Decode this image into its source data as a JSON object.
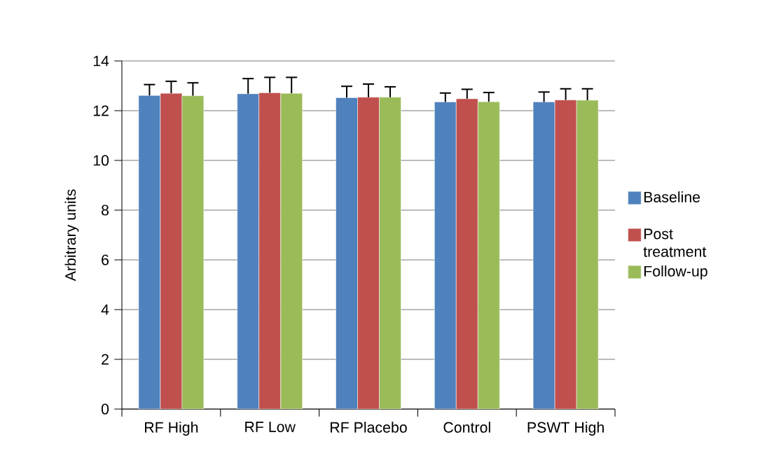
{
  "chart_data": {
    "type": "bar",
    "ylabel": "Arbitrary units",
    "categories": [
      "RF High",
      "RF Low",
      "RF Placebo",
      "Control",
      "PSWT High"
    ],
    "series": [
      {
        "name": "Baseline",
        "color": "#4f81bd",
        "values": [
          12.61,
          12.68,
          12.52,
          12.35,
          12.35
        ],
        "errors": [
          [
            12.61,
            13.05
          ],
          [
            12.68,
            13.29
          ],
          [
            12.52,
            12.98
          ],
          [
            12.35,
            12.71
          ],
          [
            12.35,
            12.75
          ]
        ]
      },
      {
        "name": "Post treatment",
        "color": "#c0504d",
        "values": [
          12.7,
          12.72,
          12.54,
          12.48,
          12.43
        ],
        "errors": [
          [
            12.7,
            13.18
          ],
          [
            12.72,
            13.34
          ],
          [
            12.54,
            13.07
          ],
          [
            12.48,
            12.86
          ],
          [
            12.43,
            12.88
          ]
        ]
      },
      {
        "name": "Follow-up",
        "color": "#9bbb59",
        "values": [
          12.6,
          12.7,
          12.54,
          12.36,
          12.42
        ],
        "errors": [
          [
            12.6,
            13.12
          ],
          [
            12.7,
            13.34
          ],
          [
            12.54,
            12.96
          ],
          [
            12.36,
            12.73
          ],
          [
            12.42,
            12.88
          ]
        ]
      }
    ],
    "ylim": [
      0,
      14
    ],
    "yticks": [
      0,
      2,
      4,
      6,
      8,
      10,
      12,
      14
    ],
    "grid": "y",
    "legend": "right"
  }
}
